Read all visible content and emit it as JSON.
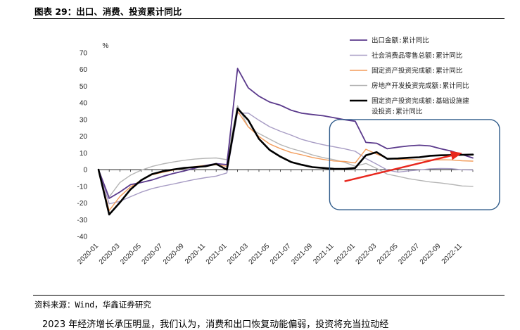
{
  "figure_title": "图表 29：出口、消费、投资累计同比",
  "source": "资料来源：Wind，华鑫证券研究",
  "body_text": "2023 年经济增长承压明显，我们认为，消费和出口恢复动能偏弱，投资将充当拉动经",
  "colors": {
    "export": "#5b3a8c",
    "retail": "#a79cc4",
    "fai": "#f39c5a",
    "realestate": "#b5b5b5",
    "infra": "#000000",
    "arrow": "#e8271d",
    "box": "#2f5b8a"
  },
  "chart_data": {
    "type": "line",
    "unit_label": "%",
    "ylim": [
      -40,
      70
    ],
    "yticks": [
      -40,
      -30,
      -20,
      -10,
      0,
      10,
      20,
      30,
      40,
      50,
      60,
      70
    ],
    "xlim": [
      "2020-01",
      "2022-12"
    ],
    "xtick_labels": [
      "2020-01",
      "2020-03",
      "2020-05",
      "2020-07",
      "2020-09",
      "2020-11",
      "2021-01",
      "2021-03",
      "2021-05",
      "2021-07",
      "2021-09",
      "2021-11",
      "2022-01",
      "2022-03",
      "2022-05",
      "2022-07",
      "2022-09",
      "2022-11"
    ],
    "grid": false,
    "legend_position": "top-right",
    "series": [
      {
        "name": "出口金额:累计同比",
        "color_key": "export",
        "width": 1.8,
        "x": [
          "2020-01",
          "2020-02",
          "2020-03",
          "2020-04",
          "2020-05",
          "2020-06",
          "2020-07",
          "2020-08",
          "2020-09",
          "2020-10",
          "2020-11",
          "2020-12",
          "2021-01",
          "2021-02",
          "2021-03",
          "2021-04",
          "2021-05",
          "2021-06",
          "2021-07",
          "2021-08",
          "2021-09",
          "2021-10",
          "2021-11",
          "2021-12",
          "2022-01",
          "2022-02",
          "2022-03",
          "2022-04",
          "2022-05",
          "2022-06",
          "2022-07",
          "2022-08",
          "2022-09",
          "2022-10",
          "2022-11",
          "2022-12"
        ],
        "values": [
          0,
          -17.2,
          -13.4,
          -9.0,
          -7.7,
          -6.2,
          -4.1,
          -2.3,
          -0.8,
          0.9,
          2.5,
          3.6,
          3.0,
          60.6,
          49.0,
          44.0,
          40.5,
          38.6,
          35.6,
          33.8,
          33.0,
          32.3,
          31.1,
          29.9,
          29.0,
          16.3,
          15.8,
          12.5,
          13.5,
          14.2,
          14.6,
          14.2,
          12.5,
          11.1,
          9.0,
          7.0
        ]
      },
      {
        "name": "社会消费品零售总额:累计同比",
        "color_key": "retail",
        "width": 1.4,
        "x": [
          "2020-01",
          "2020-02",
          "2020-03",
          "2020-04",
          "2020-05",
          "2020-06",
          "2020-07",
          "2020-08",
          "2020-09",
          "2020-10",
          "2020-11",
          "2020-12",
          "2021-01",
          "2021-02",
          "2021-03",
          "2021-04",
          "2021-05",
          "2021-06",
          "2021-07",
          "2021-08",
          "2021-09",
          "2021-10",
          "2021-11",
          "2021-12",
          "2022-01",
          "2022-02",
          "2022-03",
          "2022-04",
          "2022-05",
          "2022-06",
          "2022-07",
          "2022-08",
          "2022-09",
          "2022-10",
          "2022-11",
          "2022-12"
        ],
        "values": [
          0,
          -20.5,
          -19.0,
          -16.2,
          -13.5,
          -11.4,
          -9.9,
          -8.6,
          -7.2,
          -5.9,
          -4.8,
          -3.9,
          -2.0,
          33.8,
          33.9,
          29.6,
          25.7,
          23.0,
          20.7,
          18.1,
          16.4,
          14.9,
          13.7,
          12.5,
          11.0,
          6.7,
          3.3,
          -0.2,
          -1.5,
          -0.7,
          -0.2,
          0.5,
          0.7,
          0.6,
          -0.1,
          -0.2
        ]
      },
      {
        "name": "固定资产投资完成额:累计同比",
        "color_key": "fai",
        "width": 1.4,
        "x": [
          "2020-01",
          "2020-02",
          "2020-03",
          "2020-04",
          "2020-05",
          "2020-06",
          "2020-07",
          "2020-08",
          "2020-09",
          "2020-10",
          "2020-11",
          "2020-12",
          "2021-01",
          "2021-02",
          "2021-03",
          "2021-04",
          "2021-05",
          "2021-06",
          "2021-07",
          "2021-08",
          "2021-09",
          "2021-10",
          "2021-11",
          "2021-12",
          "2022-01",
          "2022-02",
          "2022-03",
          "2022-04",
          "2022-05",
          "2022-06",
          "2022-07",
          "2022-08",
          "2022-09",
          "2022-10",
          "2022-11",
          "2022-12"
        ],
        "values": [
          0,
          -24.5,
          -16.1,
          -10.3,
          -6.3,
          -3.1,
          -1.6,
          -0.3,
          0.8,
          1.8,
          2.6,
          2.9,
          2.0,
          35.0,
          25.6,
          19.9,
          15.4,
          12.6,
          10.3,
          8.9,
          7.3,
          6.1,
          5.2,
          4.9,
          4.0,
          12.2,
          9.3,
          6.8,
          6.2,
          6.1,
          5.7,
          5.8,
          5.9,
          5.8,
          5.3,
          5.1
        ]
      },
      {
        "name": "房地产开发投资完成额:累计同比",
        "color_key": "realestate",
        "width": 1.4,
        "x": [
          "2020-01",
          "2020-02",
          "2020-03",
          "2020-04",
          "2020-05",
          "2020-06",
          "2020-07",
          "2020-08",
          "2020-09",
          "2020-10",
          "2020-11",
          "2020-12",
          "2021-01",
          "2021-02",
          "2021-03",
          "2021-04",
          "2021-05",
          "2021-06",
          "2021-07",
          "2021-08",
          "2021-09",
          "2021-10",
          "2021-11",
          "2021-12",
          "2022-01",
          "2022-02",
          "2022-03",
          "2022-04",
          "2022-05",
          "2022-06",
          "2022-07",
          "2022-08",
          "2022-09",
          "2022-10",
          "2022-11",
          "2022-12"
        ],
        "values": [
          0,
          -16.3,
          -7.7,
          -3.3,
          -0.3,
          1.9,
          3.4,
          4.6,
          5.6,
          6.3,
          6.8,
          7.0,
          6.0,
          38.3,
          25.6,
          21.6,
          18.3,
          15.0,
          12.7,
          10.9,
          8.8,
          7.2,
          6.0,
          4.4,
          2.0,
          3.7,
          0.7,
          -2.7,
          -4.0,
          -5.4,
          -6.4,
          -7.4,
          -8.0,
          -8.8,
          -9.8,
          -10.0
        ]
      },
      {
        "name": "固定资产投资完成额:基础设施建设投资:累计同比",
        "color_key": "infra",
        "width": 2.6,
        "x": [
          "2020-01",
          "2020-02",
          "2020-03",
          "2020-04",
          "2020-05",
          "2020-06",
          "2020-07",
          "2020-08",
          "2020-09",
          "2020-10",
          "2020-11",
          "2020-12",
          "2021-01",
          "2021-02",
          "2021-03",
          "2021-04",
          "2021-05",
          "2021-06",
          "2021-07",
          "2021-08",
          "2021-09",
          "2021-10",
          "2021-11",
          "2021-12",
          "2022-01",
          "2022-02",
          "2022-03",
          "2022-04",
          "2022-05",
          "2022-06",
          "2022-07",
          "2022-08",
          "2022-09",
          "2022-10",
          "2022-11",
          "2022-12"
        ],
        "values": [
          0,
          -26.9,
          -19.7,
          -11.8,
          -6.3,
          -2.7,
          -1.0,
          0.1,
          1.0,
          1.5,
          2.0,
          3.4,
          0.0,
          36.6,
          29.7,
          18.4,
          11.8,
          7.8,
          4.6,
          2.9,
          1.5,
          1.0,
          0.5,
          0.4,
          1.0,
          8.6,
          10.5,
          6.5,
          6.7,
          7.1,
          7.4,
          8.3,
          8.6,
          8.7,
          8.9,
          9.0
        ]
      }
    ],
    "legend": [
      {
        "label": "出口金额:累计同比",
        "color_key": "export",
        "width": 1.8
      },
      {
        "label": "社会消费品零售总额:累计同比",
        "color_key": "retail",
        "width": 1.4
      },
      {
        "label": "固定资产投资完成额:累计同比",
        "color_key": "fai",
        "width": 1.4
      },
      {
        "label": "房地产开发投资完成额:累计同比",
        "color_key": "realestate",
        "width": 1.4
      },
      {
        "label": "固定资产投资完成额:基础设建设投资:累计同比",
        "label_lines": [
          "固定资产投资完成额:基础设施建",
          "设投资:累计同比"
        ],
        "color_key": "infra",
        "width": 2.6
      }
    ],
    "annotations": [
      {
        "type": "rounded-box",
        "x_range": [
          "2021-11",
          "2022-12"
        ],
        "y_range": [
          -24,
          30
        ]
      },
      {
        "type": "arrow",
        "from": {
          "x": "2021-12",
          "y": -7
        },
        "to": {
          "x": "2022-11",
          "y": 10
        }
      }
    ]
  }
}
